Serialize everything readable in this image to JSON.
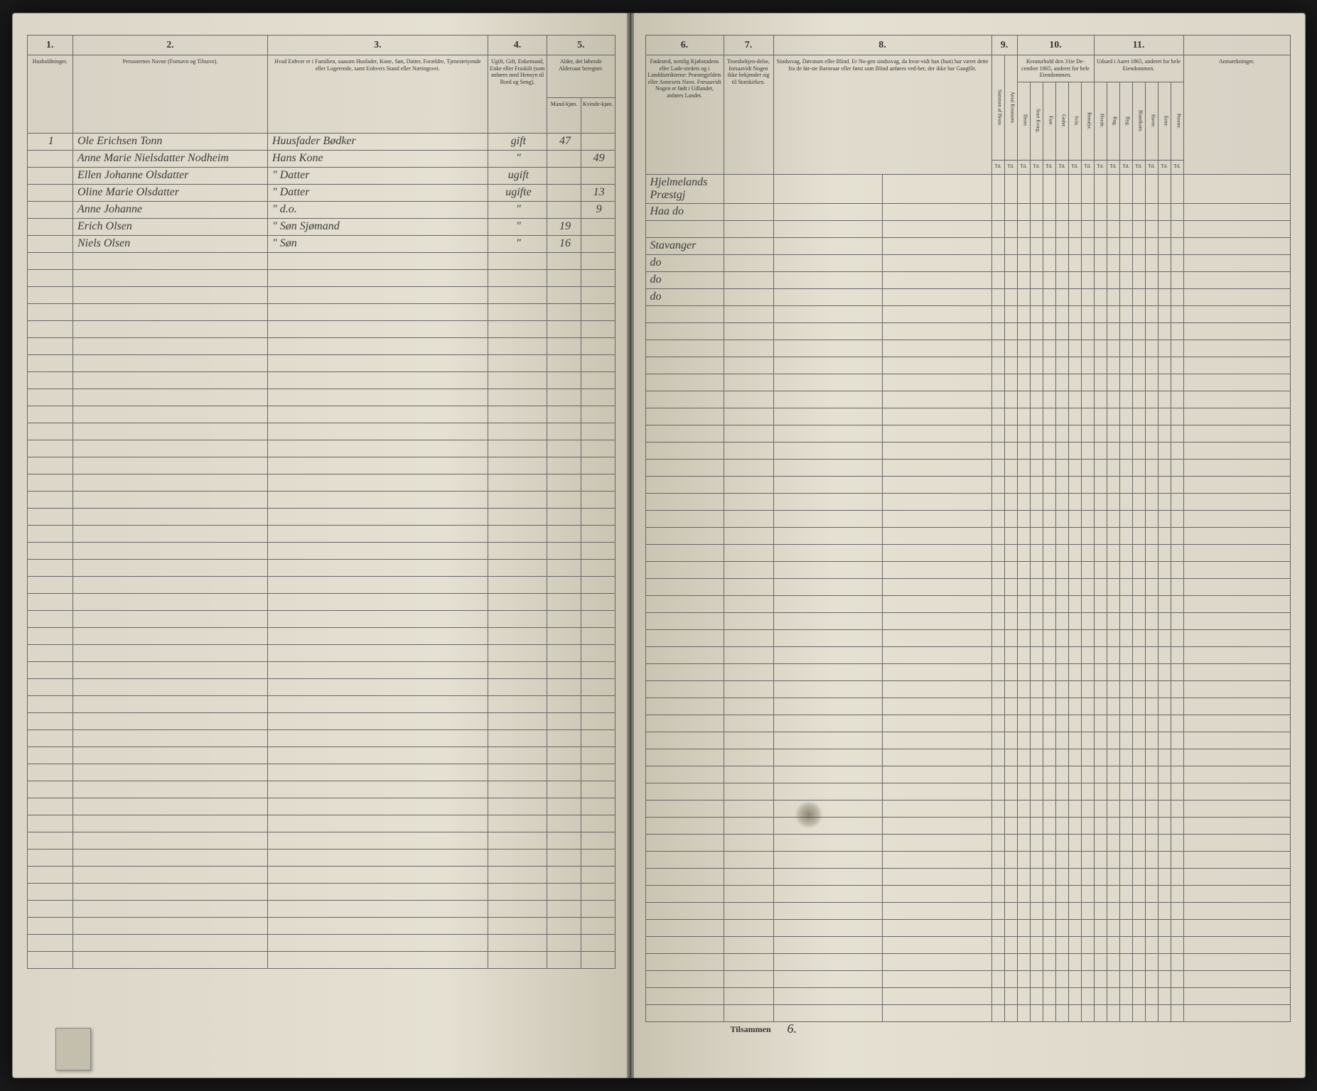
{
  "document_type": "census_ledger",
  "background_color": "#1a1a1a",
  "paper_color": "#e5e0d2",
  "ink_color": "#3a3a3a",
  "rule_color": "#666666",
  "left_page": {
    "columns": [
      {
        "num": "1.",
        "header": "Husholdninger."
      },
      {
        "num": "2.",
        "header": "Personernes Navne (Fornavn og Tilnavn)."
      },
      {
        "num": "3.",
        "header": "Hvad Enhver er i Familien, saasom Husfader, Kone, Søn, Datter, Forældre, Tjenestetyende eller Logerende, samt Enhvers Stand eller Næringsvei."
      },
      {
        "num": "4.",
        "header": "Ugift, Gift, Enkemand, Enke eller Fraskilt (som anføres med Hensyn til Bord og Seng).",
        "sub": [
          "",
          ""
        ]
      },
      {
        "num": "5.",
        "header": "Alder, det løbende Aldersaar beregnet.",
        "sub": [
          "Mand-kjøn.",
          "Kvinde-kjøn."
        ]
      }
    ],
    "rows": [
      {
        "household": "1",
        "name": "Ole Erichsen Tonn",
        "role": "Huusfader Bødker",
        "status": "gift",
        "age_m": "47",
        "age_f": ""
      },
      {
        "household": "",
        "name": "Anne Marie Nielsdatter Nodheim",
        "role": "Hans Kone",
        "status": "\"",
        "age_m": "",
        "age_f": "49"
      },
      {
        "household": "",
        "name": "Ellen Johanne Olsdatter",
        "role": "\" Datter",
        "status": "ugift",
        "age_m": "",
        "age_f": ""
      },
      {
        "household": "",
        "name": "Oline Marie Olsdatter",
        "role": "\" Datter",
        "status": "ugifte",
        "age_m": "",
        "age_f": "13"
      },
      {
        "household": "",
        "name": "Anne Johanne",
        "role": "\" d.o.",
        "status": "\"",
        "age_m": "",
        "age_f": "9"
      },
      {
        "household": "",
        "name": "Erich Olsen",
        "role": "\" Søn Sjømand",
        "status": "\"",
        "age_m": "19",
        "age_f": ""
      },
      {
        "household": "",
        "name": "Niels Olsen",
        "role": "\" Søn",
        "status": "\"",
        "age_m": "16",
        "age_f": ""
      }
    ],
    "blank_rows": 42
  },
  "right_page": {
    "columns": [
      {
        "num": "6.",
        "header": "Fødested, nemlig Kjøbstadens eller Lade-stedets og i Landdistrikterne: Præstegjeldets eller Annexets Navn. Forsaavidt Nogen er født i Udlandet, anføres Landet."
      },
      {
        "num": "7.",
        "header": "Troesbekjen-delse, forsaavidt Nogen ikke bekjender sig til Statskirken."
      },
      {
        "num": "8.",
        "header": "Sindssvag, Døvstum eller Blind. Er No-gen sindssvag, da hvor-vidt han (hun) har været dette fra de før-ste Barneaar eller først som Blind anføres ved-ber, der ikke har Gangfôr.",
        "sub": [
          "",
          ""
        ]
      },
      {
        "num": "9.",
        "header": "",
        "sub": [
          "Summen af Heste.",
          "Antal Kreaturer."
        ]
      },
      {
        "num": "10.",
        "header": "Kreaturhold den 31te De-cember 1865, anderet for hele Eiendommen.",
        "sub": [
          "Heste.",
          "Stort Kvæg.",
          "Faar.",
          "Geder.",
          "Svin.",
          "Rensdyr."
        ]
      },
      {
        "num": "11.",
        "header": "Udsæd i Aaret 1865, anderet for hele Eiendommen.",
        "sub": [
          "Hvede.",
          "Rug.",
          "Byg.",
          "Blandkorn.",
          "Havre.",
          "Erter.",
          "Poteter."
        ]
      },
      {
        "num": "",
        "header": "Anmærkninger."
      }
    ],
    "sub_header_row": [
      "Td.",
      "Td.",
      "Td.",
      "Td.",
      "Td.",
      "Td.",
      "Td.",
      "Td.",
      "Td.",
      "Td.",
      "Td.",
      "Td.",
      "Td.",
      "Td.",
      "Td."
    ],
    "rows": [
      {
        "birthplace": "Hjelmelands Præstgj",
        "religion": "",
        "rest": [
          "",
          "",
          "",
          "",
          "",
          "",
          "",
          "",
          "",
          "",
          "",
          "",
          "",
          "",
          "",
          "",
          ""
        ]
      },
      {
        "birthplace": "Haa do",
        "religion": "",
        "rest": [
          "",
          "",
          "",
          "",
          "",
          "",
          "",
          "",
          "",
          "",
          "",
          "",
          "",
          "",
          "",
          "",
          ""
        ]
      },
      {
        "birthplace": "",
        "religion": "",
        "rest": [
          "",
          "",
          "",
          "",
          "",
          "",
          "",
          "",
          "",
          "",
          "",
          "",
          "",
          "",
          "",
          "",
          ""
        ]
      },
      {
        "birthplace": "Stavanger",
        "religion": "",
        "rest": [
          "",
          "",
          "",
          "",
          "",
          "",
          "",
          "",
          "",
          "",
          "",
          "",
          "",
          "",
          "",
          "",
          ""
        ]
      },
      {
        "birthplace": "do",
        "religion": "",
        "rest": [
          "",
          "",
          "",
          "",
          "",
          "",
          "",
          "",
          "",
          "",
          "",
          "",
          "",
          "",
          "",
          "",
          ""
        ]
      },
      {
        "birthplace": "do",
        "religion": "",
        "rest": [
          "",
          "",
          "",
          "",
          "",
          "",
          "",
          "",
          "",
          "",
          "",
          "",
          "",
          "",
          "",
          "",
          ""
        ]
      },
      {
        "birthplace": "do",
        "religion": "",
        "rest": [
          "",
          "",
          "",
          "",
          "",
          "",
          "",
          "",
          "",
          "",
          "",
          "",
          "",
          "",
          "",
          "",
          ""
        ]
      }
    ],
    "blank_rows": 42,
    "footer_label": "Tilsammen",
    "footer_value": "6."
  }
}
